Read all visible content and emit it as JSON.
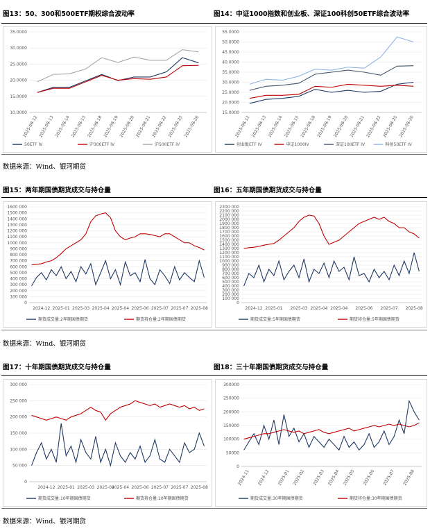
{
  "chart_data": [
    {
      "type": "line",
      "title": "图13：50、300和500ETF期权综合波动率",
      "rotate_x_labels": true,
      "categories": [
        "2025-08-12",
        "2025-08-13",
        "2025-08-14",
        "2025-08-15",
        "2025-08-18",
        "2025-08-19",
        "2025-08-20",
        "2025-08-21",
        "2025-08-22",
        "2025-08-25",
        "2025-08-26"
      ],
      "ylim": [
        10,
        35
      ],
      "yticks": [
        {
          "value": 10,
          "label": "10.0000"
        },
        {
          "value": 15,
          "label": "15.0000"
        },
        {
          "value": 20,
          "label": "20.0000"
        },
        {
          "value": 25,
          "label": "25.0000"
        },
        {
          "value": 30,
          "label": "30.0000"
        },
        {
          "value": 35,
          "label": "35.0000"
        }
      ],
      "series": [
        {
          "name": "50ETF IV",
          "color": "#1f3864",
          "values": [
            16.2,
            17.8,
            17.8,
            19.8,
            21.8,
            19.9,
            21.0,
            21.0,
            22.6,
            27.0,
            25.4
          ]
        },
        {
          "name": "沪300ETF IV",
          "color": "#c00000",
          "values": [
            16.2,
            17.5,
            17.5,
            19.5,
            21.5,
            20.0,
            20.5,
            20.3,
            21.0,
            24.5,
            24.6
          ]
        },
        {
          "name": "沪500ETF IV",
          "color": "#a6a6a6",
          "values": [
            19.5,
            21.8,
            22.0,
            23.5,
            27.0,
            25.5,
            27.2,
            26.2,
            26.2,
            29.5,
            28.8
          ]
        }
      ]
    },
    {
      "type": "line",
      "title": "图14：中证1000指数和创业板、深证100科创50ETF综合波动率",
      "rotate_x_labels": true,
      "categories": [
        "2025-08-12",
        "2025-08-13",
        "2025-08-14",
        "2025-08-15",
        "2025-08-18",
        "2025-08-19",
        "2025-08-20",
        "2025-08-21",
        "2025-08-22",
        "2025-08-25",
        "2025-08-26"
      ],
      "ylim": [
        15,
        55
      ],
      "yticks": [
        {
          "value": 15,
          "label": "15.0000"
        },
        {
          "value": 20,
          "label": "20.0000"
        },
        {
          "value": 25,
          "label": "25.0000"
        },
        {
          "value": 30,
          "label": "30.0000"
        },
        {
          "value": 35,
          "label": "35.0000"
        },
        {
          "value": 40,
          "label": "40.0000"
        },
        {
          "value": 45,
          "label": "45.0000"
        },
        {
          "value": 50,
          "label": "50.0000"
        },
        {
          "value": 55,
          "label": "55.0000"
        }
      ],
      "series": [
        {
          "name": "创业板ETF IV",
          "color": "#1f3864",
          "values": [
            19.5,
            21.5,
            22.0,
            23.0,
            26.5,
            25.0,
            26.0,
            25.0,
            25.5,
            29.0,
            30.0
          ]
        },
        {
          "name": "中证1000IV",
          "color": "#c00000",
          "values": [
            22.0,
            23.5,
            23.5,
            24.0,
            28.0,
            27.5,
            29.0,
            28.5,
            28.0,
            28.5,
            28.0
          ]
        },
        {
          "name": "深证100ETF IV",
          "color": "#44546a",
          "values": [
            26.0,
            28.0,
            28.5,
            29.5,
            34.0,
            35.0,
            36.0,
            35.0,
            33.5,
            38.0,
            38.2
          ]
        },
        {
          "name": "科创50ETF IV",
          "color": "#8eb4e3",
          "values": [
            29.0,
            31.5,
            31.0,
            33.0,
            36.5,
            36.0,
            37.5,
            37.0,
            42.5,
            52.5,
            50.0
          ]
        }
      ]
    },
    {
      "type": "line",
      "title": "图15：两年期国债期货成交与持仓量",
      "rotate_x_labels": false,
      "categories": [
        null,
        null,
        "2024-12",
        null,
        null,
        null,
        "2025-01",
        null,
        null,
        null,
        "2025-03",
        null,
        null,
        null,
        "2025-04",
        null,
        null,
        null,
        "2025-04",
        null,
        null,
        null,
        "2025-06",
        null,
        null,
        null,
        "2025-07",
        null,
        null,
        null,
        "2025-07",
        null,
        null,
        null,
        "2025-08",
        null
      ],
      "ylim": [
        0,
        1600000
      ],
      "yticks": [
        0,
        {
          "value": 100000,
          "label": "100 000"
        },
        {
          "value": 200000,
          "label": "200 000"
        },
        {
          "value": 300000,
          "label": "300 000"
        },
        {
          "value": 400000,
          "label": "400 000"
        },
        {
          "value": 500000,
          "label": "500 000"
        },
        {
          "value": 600000,
          "label": "600 000"
        },
        {
          "value": 700000,
          "label": "700 000"
        },
        {
          "value": 800000,
          "label": "800 000"
        },
        {
          "value": 900000,
          "label": "900 000"
        },
        {
          "value": 1000000,
          "label": "1000 000"
        },
        {
          "value": 1100000,
          "label": "1100 000"
        },
        {
          "value": 1200000,
          "label": "1200 000"
        },
        {
          "value": 1300000,
          "label": "1300 000"
        },
        {
          "value": 1400000,
          "label": "1400 000"
        },
        {
          "value": 1500000,
          "label": "1500 000"
        },
        {
          "value": 1600000,
          "label": "1600 000"
        }
      ],
      "series": [
        {
          "name": "期货成交量:2年期国债期货",
          "color": "#1f3864",
          "values": [
            280000,
            420000,
            500000,
            380000,
            550000,
            450000,
            600000,
            400000,
            520000,
            350000,
            600000,
            480000,
            650000,
            300000,
            500000,
            700000,
            400000,
            550000,
            300000,
            680000,
            450000,
            500000,
            350000,
            720000,
            400000,
            300000,
            550000,
            450000,
            320000,
            600000,
            380000,
            500000,
            420000,
            350000,
            700000,
            420000
          ]
        },
        {
          "name": "期货持仓量:2年期国债期货",
          "color": "#c00000",
          "values": [
            630000,
            640000,
            650000,
            680000,
            700000,
            750000,
            820000,
            900000,
            950000,
            1000000,
            1050000,
            1150000,
            1350000,
            1450000,
            1480000,
            1500000,
            1420000,
            1200000,
            1100000,
            1050000,
            1080000,
            1100000,
            1150000,
            1150000,
            1140000,
            1120000,
            1100000,
            1150000,
            1150000,
            1100000,
            1050000,
            1000000,
            1000000,
            950000,
            920000,
            880000
          ]
        }
      ]
    },
    {
      "type": "line",
      "title": "图16：五年期国债期货成交与持仓量",
      "rotate_x_labels": false,
      "categories": [
        null,
        null,
        "2024-12",
        null,
        null,
        null,
        "2025-01",
        null,
        null,
        null,
        null,
        "2025-03",
        null,
        null,
        null,
        "2025-04",
        null,
        null,
        null,
        "2025-04",
        null,
        null,
        null,
        null,
        "2025-06",
        null,
        null,
        null,
        null,
        "2025-07",
        null,
        null,
        null,
        null,
        "2025-08",
        null
      ],
      "ylim": [
        0,
        2300000
      ],
      "yticks": [
        0,
        {
          "value": 100000,
          "label": "100 000"
        },
        {
          "value": 200000,
          "label": "200 000"
        },
        {
          "value": 300000,
          "label": "300 000"
        },
        {
          "value": 400000,
          "label": "400 000"
        },
        {
          "value": 500000,
          "label": "500 000"
        },
        {
          "value": 600000,
          "label": "600 000"
        },
        {
          "value": 700000,
          "label": "700 000"
        },
        {
          "value": 800000,
          "label": "800 000"
        },
        {
          "value": 900000,
          "label": "900 000"
        },
        {
          "value": 1000000,
          "label": "1000 000"
        },
        {
          "value": 1100000,
          "label": "1100 000"
        },
        {
          "value": 1200000,
          "label": "1200 000"
        },
        {
          "value": 1300000,
          "label": "1300 000"
        },
        {
          "value": 1400000,
          "label": "1400 000"
        },
        {
          "value": 1500000,
          "label": "1500 000"
        },
        {
          "value": 1600000,
          "label": "1600 000"
        },
        {
          "value": 1700000,
          "label": "1700 000"
        },
        {
          "value": 1800000,
          "label": "1800 000"
        },
        {
          "value": 1900000,
          "label": "1900 000"
        },
        {
          "value": 2000000,
          "label": "2000 000"
        },
        {
          "value": 2100000,
          "label": "2100 000"
        },
        {
          "value": 2200000,
          "label": "2200 000"
        },
        {
          "value": 2300000,
          "label": "2300 000"
        }
      ],
      "series": [
        {
          "name": "期货成交量:5年期国债期货",
          "color": "#1f3864",
          "values": [
            400000,
            700000,
            600000,
            900000,
            500000,
            800000,
            650000,
            1000000,
            550000,
            750000,
            900000,
            600000,
            1050000,
            500000,
            800000,
            700000,
            950000,
            600000,
            1000000,
            750000,
            850000,
            550000,
            1100000,
            650000,
            700000,
            500000,
            800000,
            600000,
            750000,
            550000,
            900000,
            650000,
            1000000,
            700000,
            1200000,
            750000
          ]
        },
        {
          "name": "期货持仓量:5年期国债期货",
          "color": "#c00000",
          "values": [
            1300000,
            1320000,
            1330000,
            1350000,
            1380000,
            1400000,
            1420000,
            1500000,
            1600000,
            1700000,
            1800000,
            1950000,
            2050000,
            2100000,
            2080000,
            1900000,
            1600000,
            1400000,
            1450000,
            1500000,
            1600000,
            1700000,
            1800000,
            1900000,
            1950000,
            2000000,
            2050000,
            2000000,
            2050000,
            1950000,
            1900000,
            1800000,
            1800000,
            1700000,
            1650000,
            1550000
          ]
        }
      ]
    },
    {
      "type": "line",
      "title": "图17：十年期国债期货成交与持仓量",
      "rotate_x_labels": false,
      "categories": [
        null,
        null,
        null,
        "2024-12",
        null,
        null,
        null,
        "2025-01",
        null,
        null,
        null,
        "2025-03",
        null,
        null,
        null,
        "2025-04",
        null,
        null,
        "2025-04",
        null,
        null,
        null,
        "2025-06",
        null,
        null,
        null,
        "2025-07",
        null,
        null,
        null,
        "2025-07",
        null,
        null,
        null,
        "2025-08",
        null
      ],
      "ylim": [
        0,
        300000
      ],
      "yticks": [
        0,
        {
          "value": 50000,
          "label": "50 000"
        },
        {
          "value": 100000,
          "label": "100 000"
        },
        {
          "value": 150000,
          "label": "150 000"
        },
        {
          "value": 200000,
          "label": "200 000"
        },
        {
          "value": 250000,
          "label": "250 000"
        },
        {
          "value": 300000,
          "label": "300 000"
        }
      ],
      "series": [
        {
          "name": "期货成交量:10年期国债期货",
          "color": "#1f3864",
          "values": [
            50000,
            90000,
            120000,
            70000,
            100000,
            60000,
            180000,
            80000,
            110000,
            60000,
            130000,
            90000,
            70000,
            140000,
            60000,
            100000,
            50000,
            120000,
            80000,
            60000,
            90000,
            70000,
            110000,
            60000,
            80000,
            130000,
            70000,
            60000,
            100000,
            80000,
            60000,
            120000,
            90000,
            100000,
            150000,
            110000
          ]
        },
        {
          "name": "期货持仓量:10年期国债期货",
          "color": "#c00000",
          "values": [
            205000,
            200000,
            195000,
            190000,
            195000,
            200000,
            195000,
            190000,
            200000,
            205000,
            210000,
            220000,
            230000,
            220000,
            215000,
            190000,
            210000,
            220000,
            230000,
            235000,
            240000,
            250000,
            245000,
            240000,
            235000,
            240000,
            230000,
            235000,
            240000,
            235000,
            230000,
            235000,
            225000,
            230000,
            220000,
            225000
          ]
        }
      ]
    },
    {
      "type": "line",
      "title": "图18：三十年期国债期货成交与持仓量",
      "rotate_x_labels": true,
      "categories": [
        null,
        "2024-11",
        null,
        null,
        null,
        "2024-12",
        null,
        null,
        null,
        "2025-01",
        null,
        null,
        "2025-02",
        null,
        null,
        null,
        "2025-03",
        null,
        null,
        "2025-04",
        null,
        null,
        "2025-05",
        null,
        null,
        null,
        "2025-06",
        null,
        null,
        null,
        "2025-07",
        null,
        null,
        null,
        "2025-08",
        null
      ],
      "ylim": [
        0,
        300000
      ],
      "yticks": [
        0,
        50000,
        100000,
        150000,
        200000,
        250000,
        300000
      ],
      "series": [
        {
          "name": "期货成交量:30年期国债期货",
          "color": "#1f3864",
          "values": [
            60000,
            90000,
            120000,
            80000,
            150000,
            100000,
            170000,
            80000,
            190000,
            110000,
            140000,
            90000,
            120000,
            70000,
            110000,
            90000,
            70000,
            100000,
            80000,
            60000,
            110000,
            70000,
            90000,
            60000,
            80000,
            120000,
            70000,
            90000,
            130000,
            80000,
            110000,
            170000,
            120000,
            240000,
            200000,
            170000
          ]
        },
        {
          "name": "期货持仓量:30年期国债期货",
          "color": "#c00000",
          "values": [
            100000,
            105000,
            110000,
            115000,
            120000,
            120000,
            125000,
            130000,
            135000,
            130000,
            125000,
            130000,
            120000,
            125000,
            130000,
            135000,
            125000,
            120000,
            125000,
            130000,
            135000,
            140000,
            130000,
            135000,
            140000,
            145000,
            150000,
            145000,
            150000,
            155000,
            150000,
            155000,
            150000,
            145000,
            150000,
            160000
          ]
        }
      ]
    }
  ],
  "sources": [
    "数据来源：Wind、银河期货",
    "数据来源：Wind、银河期货",
    "数据来源：Wind、银河期货"
  ]
}
